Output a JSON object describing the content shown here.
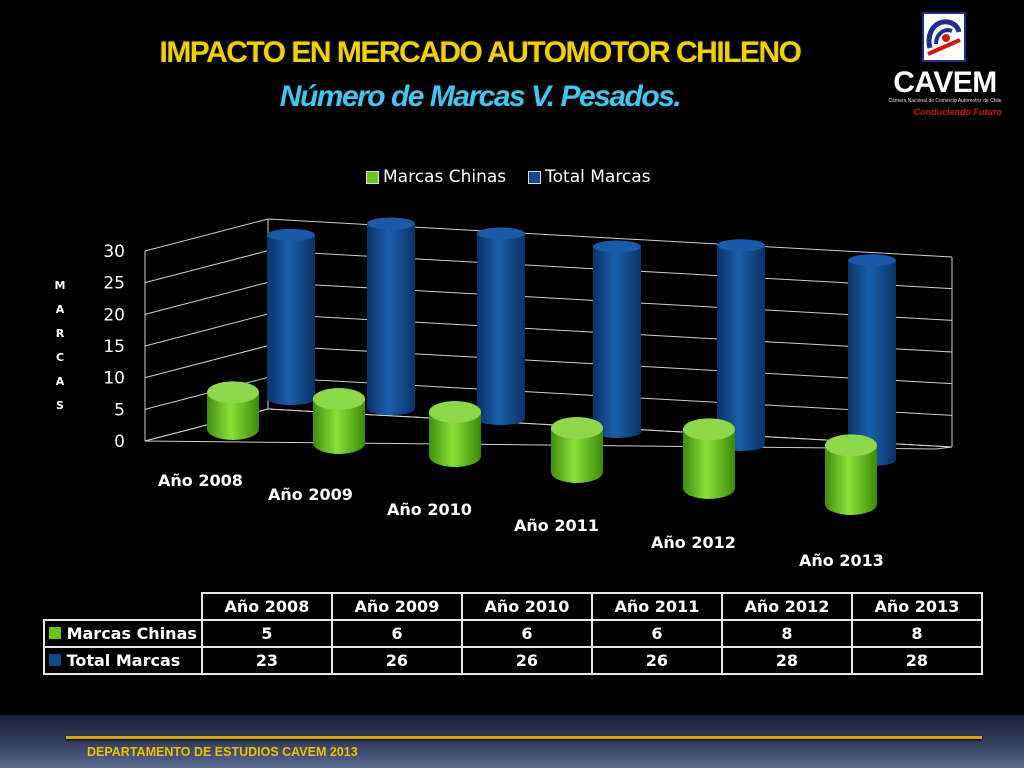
{
  "slide": {
    "title": "IMPACTO EN MERCADO AUTOMOTOR CHILENO",
    "subtitle": "Número de Marcas V. Pesados.",
    "footer": "DEPARTAMENTO DE ESTUDIOS CAVEM 2013"
  },
  "logo": {
    "name": "CAVEM",
    "tagline": "Cámara Nacional de Comercio Automotriz de Chile",
    "slogan": "Conduciendo Futuro"
  },
  "colors": {
    "title": "#f0d000",
    "subtitle": "#3ec7f2",
    "green_series": "#66c61c",
    "blue_series": "#0f4a8e"
  },
  "chart_data": {
    "type": "bar",
    "style": "3d-cylinder",
    "categories": [
      "Año 2008",
      "Año 2009",
      "Año 2010",
      "Año 2011",
      "Año 2012",
      "Año 2013"
    ],
    "series": [
      {
        "name": "Marcas Chinas",
        "values": [
          5,
          6,
          6,
          6,
          8,
          8
        ],
        "color": "#66c61c"
      },
      {
        "name": "Total Marcas",
        "values": [
          23,
          26,
          26,
          26,
          28,
          28
        ],
        "color": "#0f4a8e"
      }
    ],
    "ylabel": "MARCAS",
    "ylabel_letters": [
      "M",
      "A",
      "R",
      "C",
      "A",
      "S"
    ],
    "yticks": [
      "0",
      "5",
      "10",
      "15",
      "20",
      "25",
      "30"
    ],
    "ylim": [
      0,
      30
    ],
    "legend_position": "top",
    "grid": true,
    "data_table": true
  }
}
